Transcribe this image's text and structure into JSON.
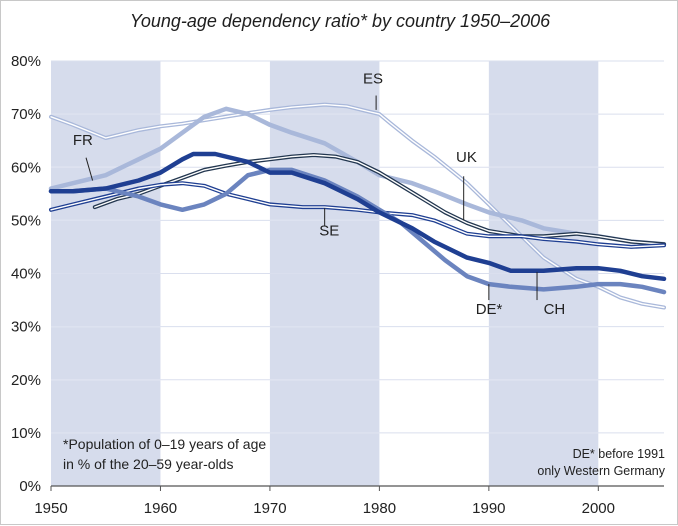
{
  "chart_data": {
    "type": "line",
    "title": "Young-age dependency ratio* by country 1950–2006",
    "xlim": [
      1950,
      2006
    ],
    "ylim": [
      0,
      80
    ],
    "x_ticks": [
      "1950",
      "1960",
      "1970",
      "1980",
      "1990",
      "2000"
    ],
    "y_ticks": [
      "0%",
      "10%",
      "20%",
      "30%",
      "40%",
      "50%",
      "60%",
      "70%",
      "80%"
    ],
    "shaded_decades": [
      [
        1950,
        1960
      ],
      [
        1970,
        1980
      ],
      [
        1990,
        2000
      ]
    ],
    "grid": "horizontal",
    "footnote": [
      "*Population of 0–19 years of age",
      "in % of the 20–59 year-olds"
    ],
    "note_de": [
      "DE* before 1991",
      "only Western Germany"
    ],
    "series": [
      {
        "name": "ES",
        "color": "#a9b8da",
        "style": "double-line",
        "x": [
          1950,
          1952,
          1955,
          1958,
          1960,
          1962,
          1965,
          1968,
          1970,
          1972,
          1975,
          1977,
          1978,
          1979,
          1980,
          1981,
          1983,
          1985,
          1988,
          1990,
          1992,
          1995,
          1998,
          2000,
          2002,
          2004,
          2006
        ],
        "y": [
          69.5,
          68,
          65.5,
          67,
          67.7,
          68.2,
          69.2,
          70.2,
          70.8,
          71.3,
          71.8,
          71.5,
          71,
          70.5,
          70,
          68.3,
          65,
          62,
          57,
          53,
          49,
          43,
          39,
          37.5,
          35.5,
          34.3,
          33.6
        ]
      },
      {
        "name": "FR",
        "color": "#a9b8da",
        "style": "thick",
        "x": [
          1950,
          1952,
          1955,
          1958,
          1960,
          1962,
          1964,
          1966,
          1968,
          1970,
          1972,
          1975,
          1978,
          1980,
          1983,
          1985,
          1988,
          1990,
          1993,
          1995,
          1998,
          2000,
          2003,
          2006
        ],
        "y": [
          56,
          57,
          58.5,
          61.5,
          63.5,
          66.5,
          69.5,
          71,
          70,
          68,
          66.5,
          64.5,
          61,
          58.5,
          57,
          55.5,
          53,
          51.5,
          50,
          48.5,
          47.5,
          47,
          46,
          45.5
        ]
      },
      {
        "name": "UK",
        "color": "#22364f",
        "style": "double-line",
        "x": [
          1954,
          1956,
          1958,
          1960,
          1962,
          1964,
          1966,
          1968,
          1970,
          1972,
          1974,
          1976,
          1978,
          1980,
          1982,
          1984,
          1986,
          1988,
          1990,
          1993,
          1995,
          1998,
          2000,
          2003,
          2006
        ],
        "y": [
          52.5,
          54,
          55,
          56.5,
          58,
          59.5,
          60.3,
          61,
          61.5,
          62,
          62.3,
          62,
          61,
          59,
          56.5,
          54,
          51.5,
          49.5,
          48,
          47,
          47,
          47.5,
          47,
          46,
          45.5
        ]
      },
      {
        "name": "SE",
        "color": "#1f3f92",
        "style": "double-line",
        "x": [
          1950,
          1952,
          1955,
          1958,
          1960,
          1962,
          1964,
          1966,
          1968,
          1970,
          1973,
          1975,
          1978,
          1980,
          1983,
          1985,
          1988,
          1990,
          1993,
          1995,
          1998,
          2000,
          2003,
          2006
        ],
        "y": [
          52,
          53,
          54.5,
          56,
          56.7,
          57,
          56.5,
          55,
          54,
          53,
          52.5,
          52.5,
          52,
          51.5,
          51,
          50,
          47.5,
          47,
          47,
          46.5,
          46,
          45.5,
          45,
          45.3
        ]
      },
      {
        "name": "DE*",
        "color": "#6b84bf",
        "style": "thick",
        "x": [
          1950,
          1952,
          1955,
          1958,
          1960,
          1962,
          1964,
          1966,
          1968,
          1970,
          1972,
          1975,
          1978,
          1980,
          1982,
          1984,
          1986,
          1988,
          1990,
          1992,
          1995,
          1998,
          2000,
          2002,
          2004,
          2006
        ],
        "y": [
          55.5,
          55.5,
          56,
          54.5,
          53,
          52,
          53,
          55,
          58.5,
          59.5,
          59.5,
          57.5,
          54.5,
          52,
          49.5,
          46,
          42.5,
          39.5,
          38,
          37.5,
          37,
          37.5,
          38,
          38,
          37.5,
          36.5
        ]
      },
      {
        "name": "CH",
        "color": "#1f3f92",
        "style": "thick",
        "x": [
          1950,
          1952,
          1955,
          1958,
          1960,
          1962,
          1963,
          1965,
          1968,
          1970,
          1972,
          1975,
          1978,
          1980,
          1983,
          1985,
          1988,
          1990,
          1992,
          1995,
          1998,
          2000,
          2002,
          2004,
          2006
        ],
        "y": [
          55.5,
          55.5,
          56,
          57.5,
          59,
          61.5,
          62.5,
          62.5,
          61,
          59,
          59,
          57,
          54,
          51.5,
          48.5,
          46,
          43,
          42,
          40.5,
          40.5,
          41,
          41,
          40.5,
          39.5,
          39
        ]
      }
    ],
    "labels": [
      {
        "series": "FR",
        "text": "FR"
      },
      {
        "series": "ES",
        "text": "ES"
      },
      {
        "series": "UK",
        "text": "UK"
      },
      {
        "series": "SE",
        "text": "SE"
      },
      {
        "series": "DE*",
        "text": "DE*"
      },
      {
        "series": "CH",
        "text": "CH"
      }
    ]
  }
}
